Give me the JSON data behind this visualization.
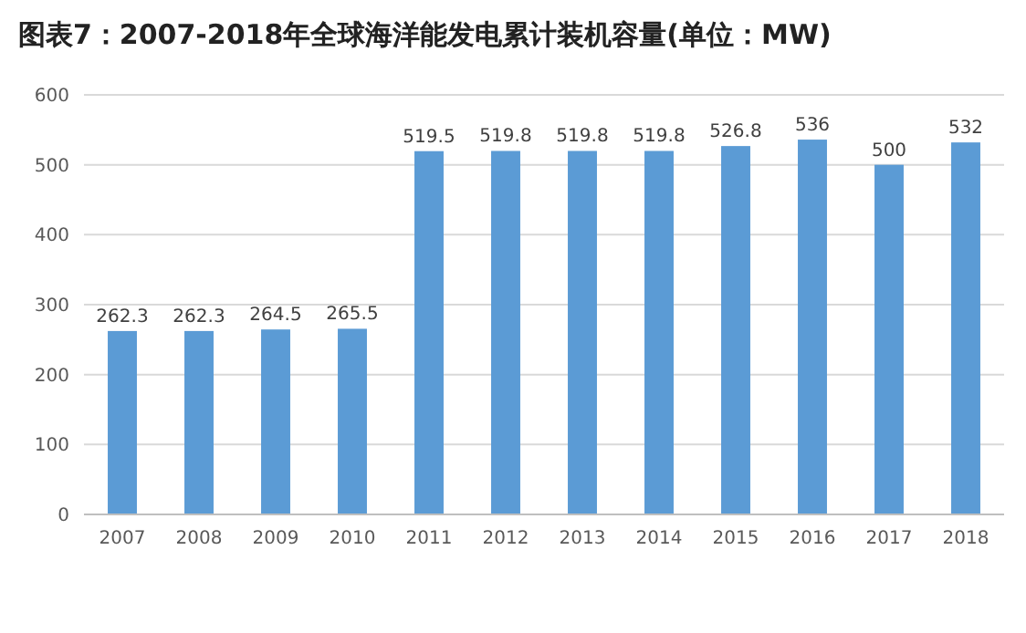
{
  "chart_data": {
    "type": "bar",
    "title": "图表7：2007-2018年全球海洋能发电累计装机容量(单位：MW)",
    "categories": [
      "2007",
      "2008",
      "2009",
      "2010",
      "2011",
      "2012",
      "2013",
      "2014",
      "2015",
      "2016",
      "2017",
      "2018"
    ],
    "values": [
      262.3,
      262.3,
      264.5,
      265.5,
      519.5,
      519.8,
      519.8,
      519.8,
      526.8,
      536,
      500,
      532
    ],
    "color": "#5b9bd5",
    "ylim": [
      0,
      600
    ],
    "yticks": [
      0,
      100,
      200,
      300,
      400,
      500,
      600
    ],
    "grid": "y",
    "data_labels": true
  }
}
